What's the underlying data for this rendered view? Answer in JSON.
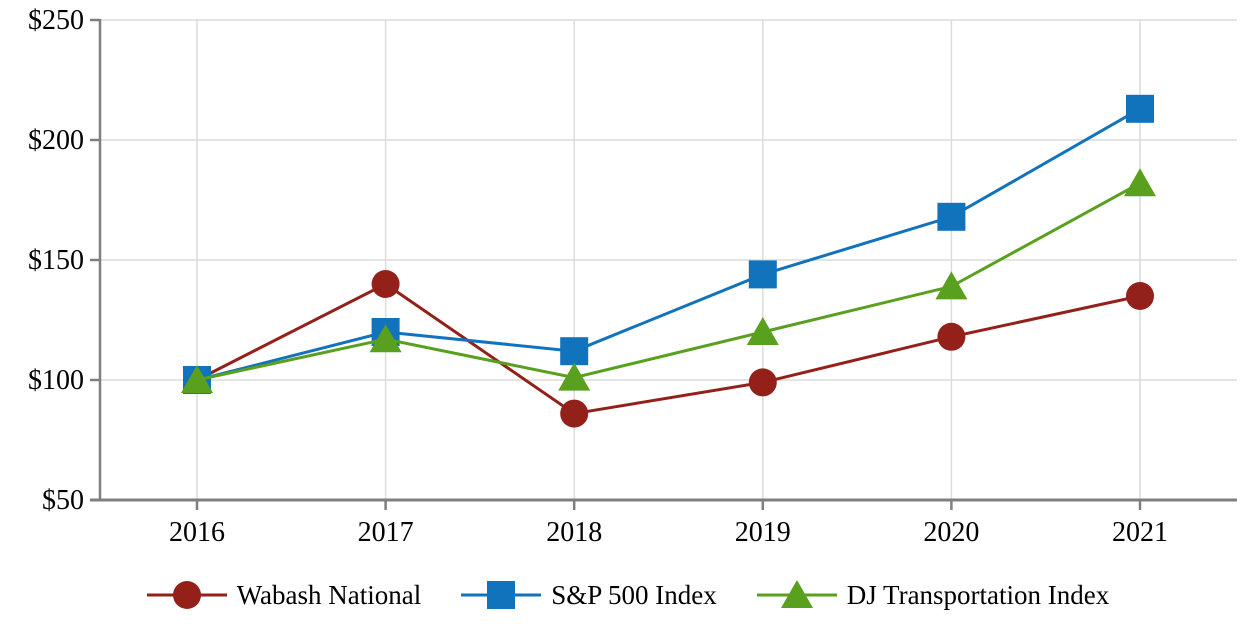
{
  "chart_data": {
    "type": "line",
    "categories": [
      "2016",
      "2017",
      "2018",
      "2019",
      "2020",
      "2021"
    ],
    "series": [
      {
        "name": "Wabash National",
        "marker": "circle",
        "color": "#93211A",
        "values": [
          100,
          140,
          86,
          99,
          118,
          135
        ]
      },
      {
        "name": "S&P 500 Index",
        "marker": "square",
        "color": "#1273BD",
        "values": [
          100,
          120,
          112,
          144,
          168,
          213
        ]
      },
      {
        "name": "DJ Transportation Index",
        "marker": "triangle",
        "color": "#58A01E",
        "values": [
          100,
          117,
          101,
          120,
          139,
          182
        ]
      }
    ],
    "title": "",
    "xlabel": "",
    "ylabel": "",
    "y_axis": {
      "min": 50,
      "max": 250,
      "ticks": [
        {
          "value": 50,
          "label": "$50"
        },
        {
          "value": 100,
          "label": "$100"
        },
        {
          "value": 150,
          "label": "$150"
        },
        {
          "value": 200,
          "label": "$200"
        },
        {
          "value": 250,
          "label": "$250"
        }
      ]
    },
    "grid": true,
    "legend_position": "bottom",
    "colors": {
      "axis": "#7F7F7F",
      "grid": "#DCDCDC",
      "text": "#000000",
      "background": "#FFFFFF"
    }
  }
}
